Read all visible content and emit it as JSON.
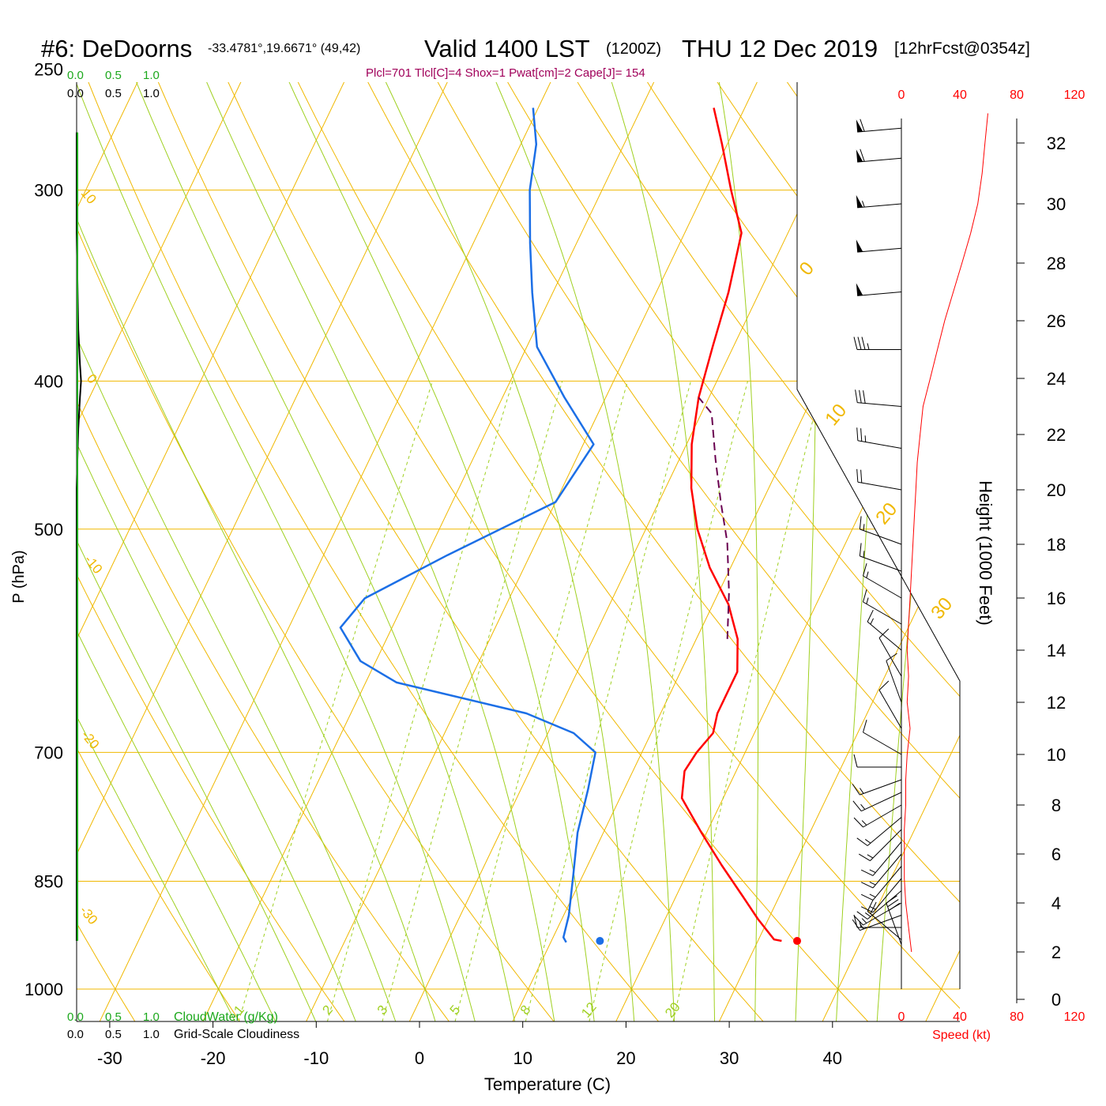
{
  "header": {
    "station": "#6: DeDoorns",
    "coords": "-33.4781°,19.6671° (49,42)",
    "valid_main": "Valid 1400 LST",
    "valid_z": "(1200Z)",
    "valid_date": "THU 12 Dec 2019",
    "forecast": "[12hrFcst@0354z]",
    "indices": "Plcl=701 Tlcl[C]=4 Shox=1 Pwat[cm]=2 Cape[J]= 154"
  },
  "colors": {
    "temperature": "#ff0000",
    "dewpoint": "#1c6fe6",
    "parcel": "#6a0050",
    "isobar": "#f0b800",
    "dry_adiabat": "#f0b800",
    "moist_adiabat": "#9fd020",
    "mixing_ratio": "#9fd020",
    "cloud_water": "#1ca81c",
    "indices_text": "#a0005a",
    "speed_axis": "#ff0000"
  },
  "chart_data": {
    "type": "line",
    "xlabel": "Temperature (C)",
    "ylabel": "P (hPa)",
    "y_right_label": "Height (1000 Feet)",
    "x_ticks": [
      "-30",
      "-20",
      "-10",
      "0",
      "10",
      "20",
      "30",
      "40"
    ],
    "p_ticks": [
      "250",
      "300",
      "400",
      "500",
      "700",
      "850",
      "1000"
    ],
    "height_ticks": [
      "0",
      "2",
      "4",
      "6",
      "8",
      "10",
      "12",
      "14",
      "16",
      "18",
      "20",
      "22",
      "24",
      "26",
      "28",
      "30",
      "32"
    ],
    "dry_adiabat_labels": [
      "0",
      "10",
      "20",
      "30"
    ],
    "left_edge_labels": [
      "10",
      "0",
      "-10",
      "-20",
      "-30"
    ],
    "mixing_ratio_labels": [
      "1",
      "2",
      "3",
      "5",
      "8",
      "12",
      "20"
    ],
    "cloud_scale": {
      "ticks_green": [
        "0.0",
        "0.5",
        "1.0"
      ],
      "ticks_black": [
        "0.0",
        "0.5",
        "1.0"
      ],
      "cloud_water_label": "CloudWater (g/Kg)",
      "grid_cloud_label": "Grid-Scale Cloudiness"
    },
    "speed_axis": {
      "ticks": [
        "0",
        "40",
        "80",
        "120"
      ],
      "label": "Speed (kt)"
    },
    "series": [
      {
        "name": "Temperature",
        "points": [
          [
            32.3,
            930
          ],
          [
            31.5,
            928
          ],
          [
            29,
            900
          ],
          [
            26.5,
            870
          ],
          [
            23,
            830
          ],
          [
            19.5,
            790
          ],
          [
            16,
            750
          ],
          [
            15,
            720
          ],
          [
            15.3,
            700
          ],
          [
            16,
            680
          ],
          [
            15.5,
            660
          ],
          [
            15.5,
            640
          ],
          [
            15.5,
            620
          ],
          [
            14,
            590
          ],
          [
            11.5,
            560
          ],
          [
            8,
            530
          ],
          [
            5,
            500
          ],
          [
            2.5,
            470
          ],
          [
            0.5,
            440
          ],
          [
            -1,
            410
          ],
          [
            -2,
            380
          ],
          [
            -3,
            350
          ],
          [
            -4.5,
            320
          ],
          [
            -7.5,
            300
          ],
          [
            -10.5,
            280
          ],
          [
            -13,
            265
          ]
        ]
      },
      {
        "name": "Dewpoint",
        "points": [
          [
            11.5,
            932
          ],
          [
            11,
            925
          ],
          [
            10.5,
            895
          ],
          [
            9,
            840
          ],
          [
            7.5,
            790
          ],
          [
            6.5,
            740
          ],
          [
            5.5,
            700
          ],
          [
            2.5,
            680
          ],
          [
            -3,
            660
          ],
          [
            -17,
            630
          ],
          [
            -21.5,
            610
          ],
          [
            -25,
            580
          ],
          [
            -24,
            555
          ],
          [
            -18,
            520
          ],
          [
            -10,
            480
          ],
          [
            -9,
            440
          ],
          [
            -14,
            410
          ],
          [
            -19,
            380
          ],
          [
            -22,
            350
          ],
          [
            -24.5,
            325
          ],
          [
            -27,
            300
          ],
          [
            -28.5,
            280
          ],
          [
            -30.5,
            265
          ]
        ]
      },
      {
        "name": "Parcel",
        "points": [
          [
            13,
            590
          ],
          [
            11,
            550
          ],
          [
            8.5,
            510
          ],
          [
            6,
            480
          ],
          [
            3.5,
            450
          ],
          [
            1,
            420
          ],
          [
            -1,
            410
          ]
        ]
      }
    ],
    "surface_markers": {
      "temperature_c": 33.8,
      "dewpoint_c": 14.7,
      "pressure_hpa": 930
    },
    "wind_speed_profile_kt": [
      [
        2,
        7
      ],
      [
        3,
        5
      ],
      [
        4,
        3
      ],
      [
        5,
        2
      ],
      [
        6,
        2
      ],
      [
        7,
        2
      ],
      [
        8,
        3
      ],
      [
        9,
        3
      ],
      [
        10,
        4
      ],
      [
        11,
        6
      ],
      [
        12,
        4
      ],
      [
        13,
        5
      ],
      [
        14,
        4
      ],
      [
        15,
        5
      ],
      [
        16,
        6
      ],
      [
        17,
        7
      ],
      [
        18,
        8
      ],
      [
        19,
        9
      ],
      [
        20,
        10
      ],
      [
        21,
        11
      ],
      [
        22,
        13
      ],
      [
        23,
        15
      ],
      [
        24,
        20
      ],
      [
        25,
        25
      ],
      [
        26,
        30
      ],
      [
        27,
        36
      ],
      [
        28,
        42
      ],
      [
        29,
        48
      ],
      [
        30,
        53
      ],
      [
        31,
        56
      ],
      [
        32,
        58
      ],
      [
        33,
        60
      ]
    ],
    "wind_barbs": [
      [
        2.3,
        340,
        30
      ],
      [
        2.5,
        310,
        20
      ],
      [
        3,
        270,
        15
      ],
      [
        3.5,
        250,
        15
      ],
      [
        4,
        240,
        15
      ],
      [
        4.5,
        230,
        15
      ],
      [
        5,
        220,
        15
      ],
      [
        5.5,
        220,
        15
      ],
      [
        6,
        220,
        15
      ],
      [
        6.5,
        220,
        15
      ],
      [
        7,
        225,
        15
      ],
      [
        7.5,
        230,
        15
      ],
      [
        8,
        240,
        15
      ],
      [
        8.5,
        245,
        15
      ],
      [
        9,
        250,
        15
      ],
      [
        9.5,
        270,
        10
      ],
      [
        10,
        300,
        10
      ],
      [
        11,
        330,
        10
      ],
      [
        12,
        340,
        10
      ],
      [
        13,
        330,
        10
      ],
      [
        14,
        310,
        15
      ],
      [
        15,
        300,
        15
      ],
      [
        16,
        300,
        15
      ],
      [
        17,
        290,
        15
      ],
      [
        18,
        290,
        15
      ],
      [
        20,
        280,
        20
      ],
      [
        21.5,
        280,
        25
      ],
      [
        23,
        275,
        30
      ],
      [
        25,
        270,
        35
      ],
      [
        27,
        265,
        50
      ],
      [
        28.5,
        265,
        50
      ],
      [
        30,
        265,
        55
      ],
      [
        31.5,
        265,
        60
      ],
      [
        32.5,
        265,
        60
      ]
    ],
    "cloud_water_profile": [
      [
        275,
        0
      ],
      [
        320,
        0
      ],
      [
        370,
        0.03
      ],
      [
        390,
        0.06
      ],
      [
        400,
        0.08
      ],
      [
        410,
        0.06
      ],
      [
        430,
        0.03
      ],
      [
        470,
        0
      ],
      [
        930,
        0
      ]
    ]
  }
}
